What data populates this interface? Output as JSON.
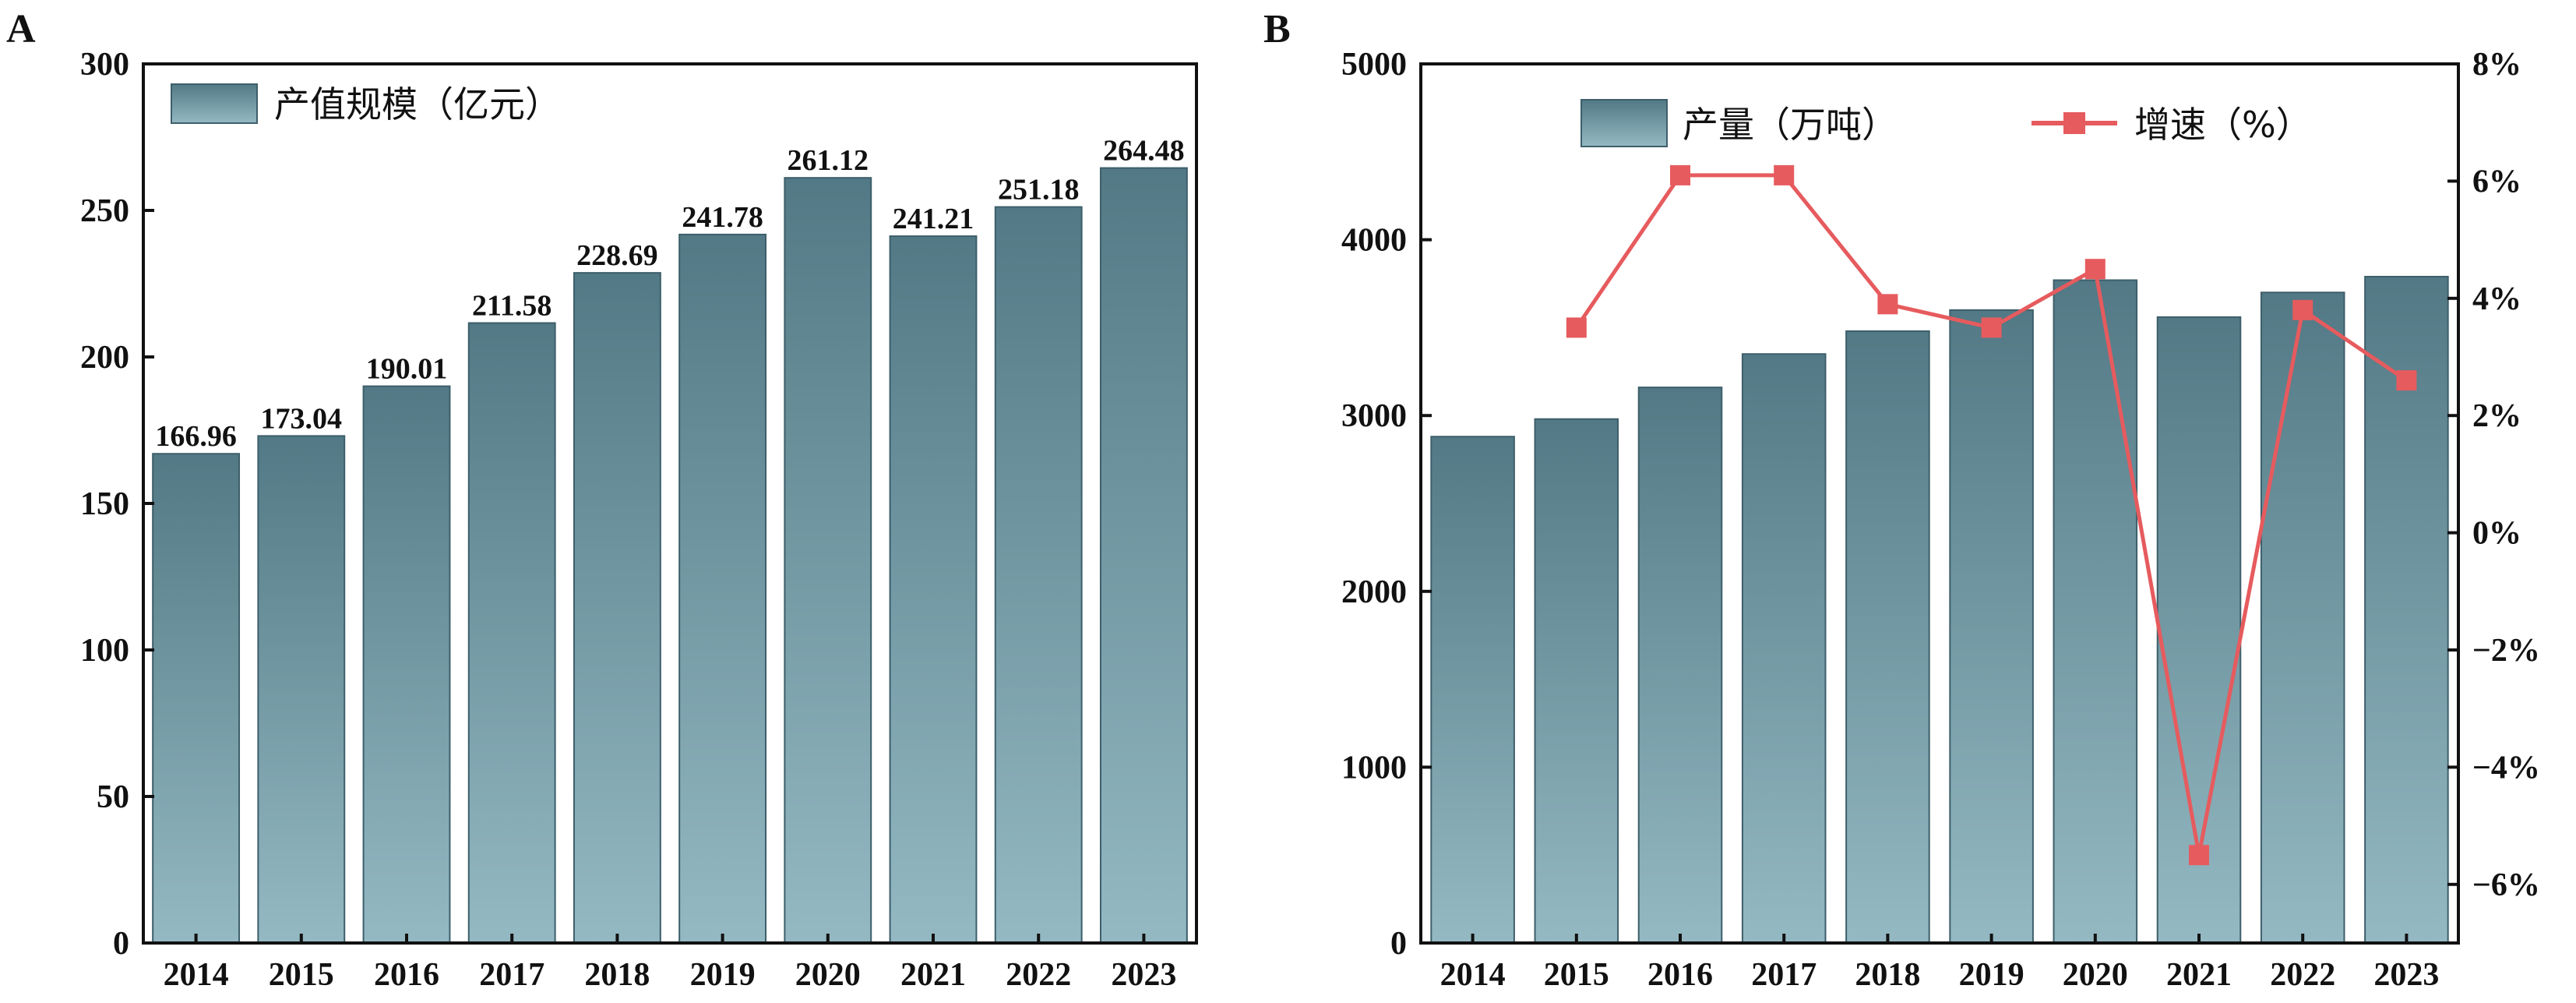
{
  "panels": {
    "a": {
      "letter": "A",
      "legend": "产值规模（亿元）"
    },
    "b": {
      "letter": "B",
      "legend_bar": "产量（万吨）",
      "legend_line": "增速（%）"
    }
  },
  "colors": {
    "bar_top": "#527985",
    "bar_bottom": "#94b9c3",
    "bar_edge": "#3d5f6a",
    "line": "#e65b5e"
  },
  "chart_data": [
    {
      "type": "bar",
      "categories": [
        "2014",
        "2015",
        "2016",
        "2017",
        "2018",
        "2019",
        "2020",
        "2021",
        "2022",
        "2023"
      ],
      "series": [
        {
          "name": "产值规模（亿元）",
          "values": [
            166.96,
            173.04,
            190.01,
            211.58,
            228.69,
            241.78,
            261.12,
            241.21,
            251.18,
            264.48
          ]
        }
      ],
      "data_labels": [
        "166.96",
        "173.04",
        "190.01",
        "211.58",
        "228.69",
        "241.78",
        "261.12",
        "241.21",
        "251.18",
        "264.48"
      ],
      "ylim": [
        0,
        300
      ],
      "yticks": [
        "0",
        "50",
        "100",
        "150",
        "200",
        "250",
        "300"
      ],
      "legend_position": "top-left",
      "grid": false
    },
    {
      "type": "bar",
      "categories": [
        "2014",
        "2015",
        "2016",
        "2017",
        "2018",
        "2019",
        "2020",
        "2021",
        "2022",
        "2023"
      ],
      "series": [
        {
          "name": "产量（万吨）",
          "type": "bar",
          "axis": "left",
          "values": [
            2880,
            2980,
            3160,
            3350,
            3480,
            3600,
            3770,
            3560,
            3700,
            3790
          ]
        },
        {
          "name": "增速（%）",
          "type": "line",
          "axis": "right",
          "values": [
            null,
            3.5,
            6.1,
            6.1,
            3.9,
            3.5,
            4.5,
            -5.5,
            3.8,
            2.6
          ]
        }
      ],
      "ylim_left": [
        0,
        5000
      ],
      "yticks_left": [
        "0",
        "1000",
        "2000",
        "3000",
        "4000",
        "5000"
      ],
      "ylim_right": [
        -7,
        8
      ],
      "yticks_right": [
        "−6%",
        "−4%",
        "−2%",
        "0%",
        "2%",
        "4%",
        "6%",
        "8%"
      ],
      "legend_position": "top-center",
      "grid": false
    }
  ]
}
